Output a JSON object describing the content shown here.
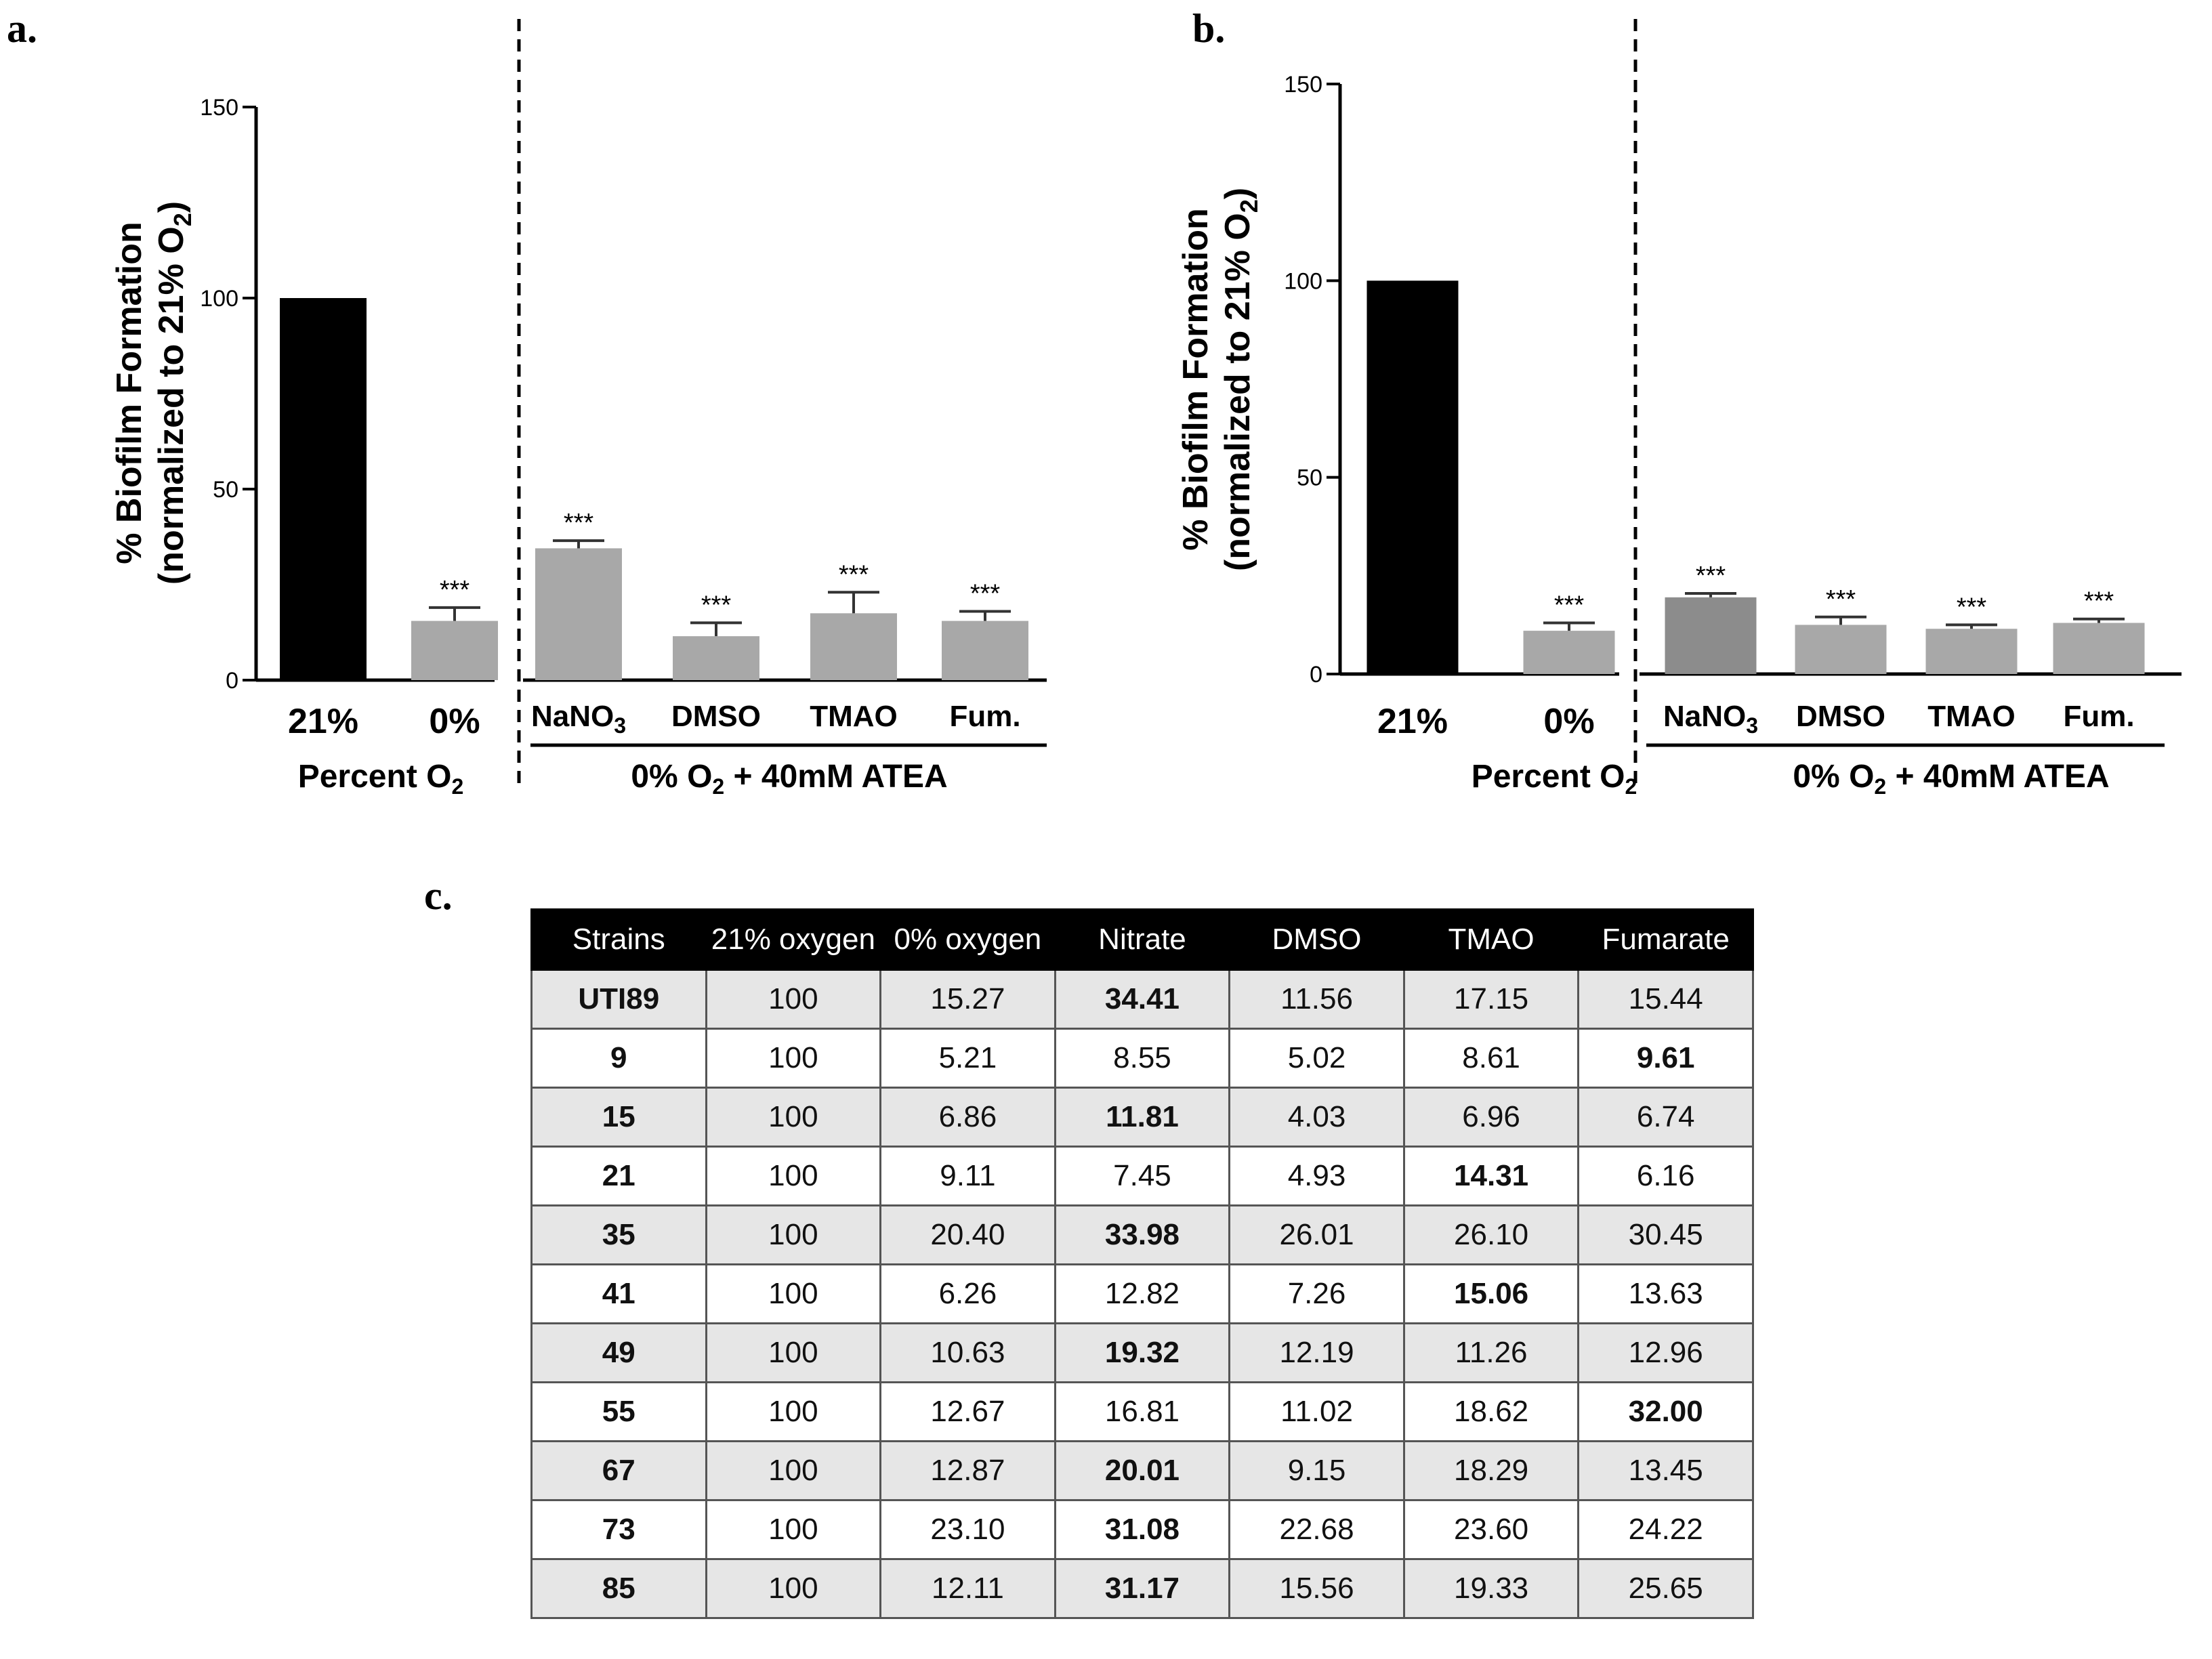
{
  "panels": {
    "a": {
      "letter": "a.",
      "group1_label": "Percent O",
      "group2_label_pre": "0% O",
      "group2_label_post": " + 40mM ATEA",
      "subscript": "2"
    },
    "b": {
      "letter": "b.",
      "group1_label": "Percent O",
      "group2_label_pre": "0% O",
      "group2_label_post": " + 40mM ATEA",
      "subscript": "2"
    },
    "c": {
      "letter": "c."
    }
  },
  "y_axis": {
    "line1": "% Biofilm Formation",
    "line2_pre": "(normalized to 21% O",
    "line2_post": ")",
    "subscript": "2"
  },
  "chart_data": [
    {
      "type": "bar",
      "panel": "a",
      "categories": [
        "21%",
        "0%",
        "NaNO3",
        "DMSO",
        "TMAO",
        "Fum."
      ],
      "values": [
        100,
        15.5,
        34.5,
        11.5,
        17.5,
        15.5
      ],
      "errors": [
        0,
        3.5,
        2,
        3.5,
        5.5,
        2.5
      ],
      "significance": [
        "",
        "***",
        "***",
        "***",
        "***",
        "***"
      ],
      "colors": [
        "#000000",
        "#a8a8a8",
        "#a8a8a8",
        "#a8a8a8",
        "#a8a8a8",
        "#a8a8a8"
      ],
      "ylim": [
        0,
        150
      ],
      "yticks": [
        0,
        50,
        100,
        150
      ],
      "ylabel": "% Biofilm Formation (normalized to 21% O2)",
      "group_labels": [
        "Percent O2",
        "0% O2 + 40mM ATEA"
      ]
    },
    {
      "type": "bar",
      "panel": "b",
      "categories": [
        "21%",
        "0%",
        "NaNO3",
        "DMSO",
        "TMAO",
        "Fum."
      ],
      "values": [
        100,
        11,
        19.5,
        12.5,
        11.5,
        13
      ],
      "errors": [
        0,
        2,
        1,
        2,
        1,
        1
      ],
      "significance": [
        "",
        "***",
        "***",
        "***",
        "***",
        "***"
      ],
      "colors": [
        "#000000",
        "#a8a8a8",
        "#8c8c8c",
        "#a8a8a8",
        "#a8a8a8",
        "#a8a8a8"
      ],
      "ylim": [
        0,
        150
      ],
      "yticks": [
        0,
        50,
        100,
        150
      ],
      "ylabel": "% Biofilm Formation (normalized to 21% O2)",
      "group_labels": [
        "Percent O2",
        "0% O2 + 40mM ATEA"
      ]
    },
    {
      "type": "table",
      "panel": "c",
      "columns": [
        "Strains",
        "21% oxygen",
        "0% oxygen",
        "Nitrate",
        "DMSO",
        "TMAO",
        "Fumarate"
      ],
      "rows": [
        {
          "strain": "UTI89",
          "values": [
            "100",
            "15.27",
            "34.41",
            "11.56",
            "17.15",
            "15.44"
          ],
          "bold_index": 2
        },
        {
          "strain": "9",
          "values": [
            "100",
            "5.21",
            "8.55",
            "5.02",
            "8.61",
            "9.61"
          ],
          "bold_index": 5
        },
        {
          "strain": "15",
          "values": [
            "100",
            "6.86",
            "11.81",
            "4.03",
            "6.96",
            "6.74"
          ],
          "bold_index": 2
        },
        {
          "strain": "21",
          "values": [
            "100",
            "9.11",
            "7.45",
            "4.93",
            "14.31",
            "6.16"
          ],
          "bold_index": 4
        },
        {
          "strain": "35",
          "values": [
            "100",
            "20.40",
            "33.98",
            "26.01",
            "26.10",
            "30.45"
          ],
          "bold_index": 2
        },
        {
          "strain": "41",
          "values": [
            "100",
            "6.26",
            "12.82",
            "7.26",
            "15.06",
            "13.63"
          ],
          "bold_index": 4
        },
        {
          "strain": "49",
          "values": [
            "100",
            "10.63",
            "19.32",
            "12.19",
            "11.26",
            "12.96"
          ],
          "bold_index": 2
        },
        {
          "strain": "55",
          "values": [
            "100",
            "12.67",
            "16.81",
            "11.02",
            "18.62",
            "32.00"
          ],
          "bold_index": 5
        },
        {
          "strain": "67",
          "values": [
            "100",
            "12.87",
            "20.01",
            "9.15",
            "18.29",
            "13.45"
          ],
          "bold_index": 2
        },
        {
          "strain": "73",
          "values": [
            "100",
            "23.10",
            "31.08",
            "22.68",
            "23.60",
            "24.22"
          ],
          "bold_index": 2
        },
        {
          "strain": "85",
          "values": [
            "100",
            "12.11",
            "31.17",
            "15.56",
            "19.33",
            "25.65"
          ],
          "bold_index": 2
        }
      ]
    }
  ]
}
